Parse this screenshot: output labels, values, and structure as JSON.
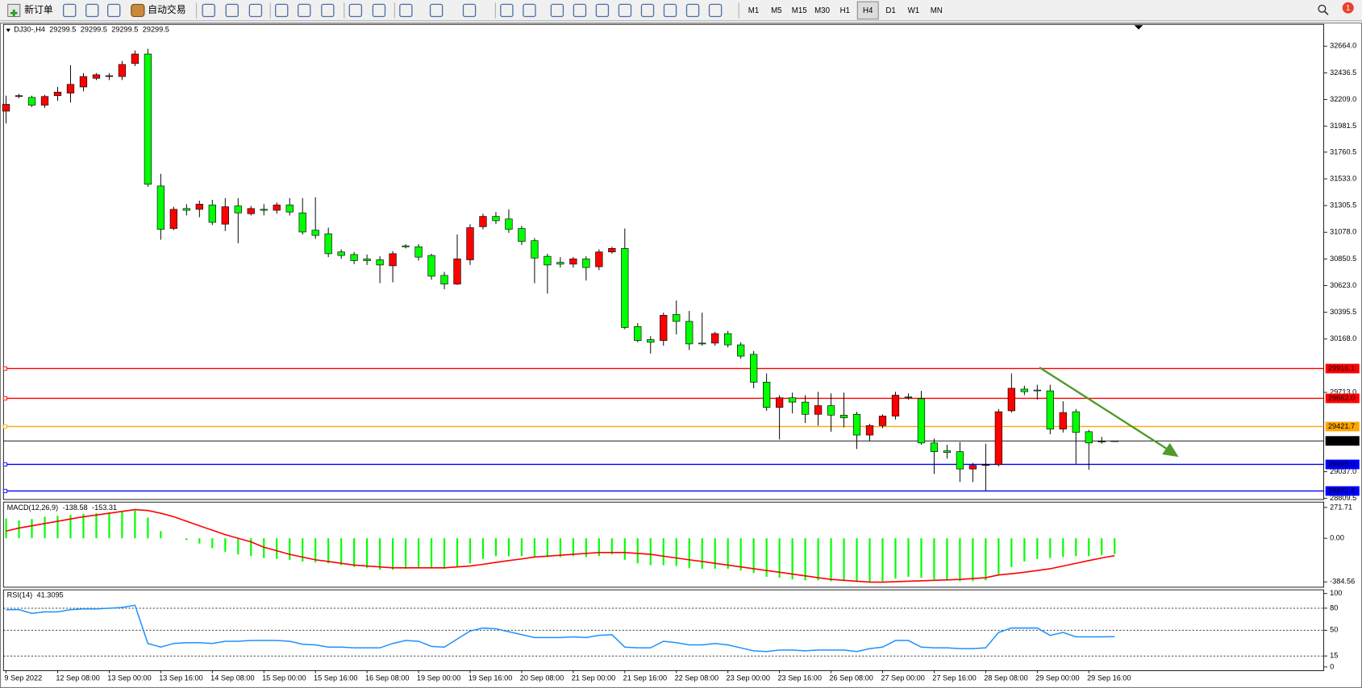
{
  "toolbar": {
    "new_order": "新订单",
    "auto_trading": "自动交易",
    "timeframes": [
      "M1",
      "M5",
      "M15",
      "M30",
      "H1",
      "H4",
      "D1",
      "W1",
      "MN"
    ],
    "active_timeframe": "H4",
    "notifications": 1
  },
  "chart_data": [
    {
      "type": "candlestick",
      "title": "DJ30-,H4",
      "categories": [
        "9 Sep 2022",
        null,
        null,
        null,
        "12 Sep 08:00",
        null,
        null,
        null,
        "13 Sep 00:00",
        null,
        null,
        null,
        "13 Sep 16:00",
        null,
        null,
        null,
        "14 Sep 08:00",
        null,
        null,
        null,
        "15 Sep 00:00",
        null,
        null,
        null,
        "15 Sep 16:00",
        null,
        null,
        null,
        "16 Sep 08:00",
        null,
        null,
        null,
        "19 Sep 00:00",
        null,
        null,
        null,
        "19 Sep 16:00",
        null,
        null,
        null,
        "20 Sep 08:00",
        null,
        null,
        null,
        "21 Sep 00:00",
        null,
        null,
        null,
        "21 Sep 16:00",
        null,
        null,
        null,
        "22 Sep 08:00",
        null,
        null,
        null,
        "23 Sep 00:00",
        null,
        null,
        null,
        "23 Sep 16:00",
        null,
        null,
        null,
        "26 Sep 08:00",
        null,
        null,
        null,
        "27 Sep 00:00",
        null,
        null,
        null,
        "27 Sep 16:00",
        null,
        null,
        null,
        "28 Sep 08:00",
        null,
        null,
        null,
        "29 Sep 00:00",
        null,
        null,
        null,
        "29 Sep 16:00",
        null,
        null
      ],
      "open": [
        32110,
        32235,
        32227,
        32161,
        32242,
        32264,
        32316,
        32390,
        32405,
        32405,
        32516,
        32597,
        31472,
        31110,
        31280,
        31273,
        31310,
        31147,
        31302,
        31236,
        31273,
        31265,
        31310,
        31243,
        31095,
        31065,
        30910,
        30888,
        30851,
        30843,
        30792,
        30962,
        30954,
        30880,
        30710,
        30636,
        30843,
        31125,
        31213,
        31191,
        31110,
        31006,
        30873,
        30821,
        30806,
        30851,
        30784,
        30910,
        30940,
        30274,
        30163,
        30155,
        30377,
        30318,
        30133,
        30133,
        30214,
        30118,
        30037,
        29800,
        29585,
        29667,
        29630,
        29526,
        29600,
        29519,
        29526,
        29349,
        29430,
        29511,
        29674,
        29659,
        29282,
        29215,
        29208,
        29060,
        29090,
        29097,
        29556,
        29741,
        29733,
        29726,
        29400,
        29548,
        29378,
        29297,
        29299.5
      ],
      "high": [
        32242,
        32257,
        32242,
        32249,
        32316,
        32501,
        32434,
        32434,
        32434,
        32538,
        32627,
        32642,
        31576,
        31295,
        31317,
        31347,
        31354,
        31369,
        31369,
        31302,
        31317,
        31332,
        31369,
        31369,
        31376,
        31117,
        30932,
        30910,
        30888,
        30873,
        30917,
        30977,
        30977,
        30895,
        30740,
        31058,
        31147,
        31236,
        31250,
        31273,
        31132,
        31028,
        30895,
        30866,
        30866,
        30873,
        30932,
        30954,
        31110,
        30303,
        30192,
        30392,
        30496,
        30407,
        30392,
        30229,
        30237,
        30140,
        30066,
        29874,
        29689,
        29711,
        29689,
        29718,
        29704,
        29711,
        29548,
        29445,
        29526,
        29718,
        29704,
        29726,
        29319,
        29267,
        29289,
        29112,
        29275,
        29571,
        29874,
        29770,
        29778,
        29778,
        29637,
        29571,
        29393,
        29334,
        29299.5
      ],
      "low": [
        32005,
        32220,
        32146,
        32138,
        32198,
        32183,
        32279,
        32375,
        32375,
        32375,
        32494,
        31465,
        31014,
        31095,
        31221,
        31206,
        31139,
        31088,
        30984,
        31221,
        31221,
        31236,
        31221,
        31058,
        31021,
        30866,
        30851,
        30806,
        30799,
        30644,
        30651,
        30940,
        30836,
        30673,
        30592,
        30629,
        30799,
        31102,
        31147,
        31073,
        30969,
        30644,
        30555,
        30777,
        30777,
        30666,
        30755,
        30895,
        30251,
        30140,
        30044,
        30111,
        30207,
        30074,
        30111,
        30111,
        30096,
        30000,
        29748,
        29556,
        29312,
        29534,
        29452,
        29430,
        29378,
        29415,
        29230,
        29297,
        29408,
        29482,
        29652,
        29267,
        29018,
        29149,
        28949,
        28949,
        28875,
        29082,
        29541,
        29689,
        29652,
        29356,
        29371,
        29104,
        29053,
        29275,
        29299.5
      ],
      "close": [
        32168,
        32242,
        32161,
        32235,
        32272,
        32338,
        32405,
        32420,
        32412,
        32508,
        32597,
        31487,
        31102,
        31273,
        31265,
        31317,
        31162,
        31295,
        31243,
        31280,
        31265,
        31310,
        31250,
        31080,
        31051,
        30895,
        30880,
        30836,
        30836,
        30799,
        30895,
        30954,
        30866,
        30703,
        30636,
        30851,
        31117,
        31213,
        31176,
        31102,
        30999,
        30858,
        30799,
        30806,
        30851,
        30777,
        30910,
        30940,
        30266,
        30155,
        30140,
        30370,
        30318,
        30126,
        30126,
        30214,
        30118,
        30022,
        29800,
        29585,
        29667,
        29630,
        29526,
        29600,
        29519,
        29497,
        29349,
        29430,
        29511,
        29689,
        29667,
        29282,
        29208,
        29201,
        29060,
        29090,
        29097,
        29548,
        29748,
        29719,
        29726,
        29400,
        29541,
        29371,
        29282,
        29290,
        29299.5
      ],
      "up_color": "#ff0000",
      "down_color": "#00ff00",
      "price_line_color": "#000000",
      "ylim": [
        28800,
        32850
      ],
      "yticks": [
        {
          "value": 32664,
          "label": "32664.0"
        },
        32436.5,
        {
          "value": 32209,
          "label": "32209.0"
        },
        31981.5,
        31760.5,
        {
          "value": 31533,
          "label": "31533.0"
        },
        31305.5,
        {
          "value": 31078,
          "label": "31078.0"
        },
        30850.5,
        {
          "value": 30623,
          "label": "30623.0"
        },
        30395.5,
        {
          "value": 30168,
          "label": "30168.0"
        },
        {
          "value": 29713,
          "label": "29713.0"
        },
        {
          "value": 29037,
          "label": "29037.0"
        },
        28809.5
      ],
      "levels": {
        "values": [
          29916.1,
          29662,
          29421.7,
          29099,
          28872.4
        ],
        "value_labels": [
          "29916.1",
          "29662.0",
          "29421.7",
          "29099.0",
          "28872.4"
        ],
        "colors": [
          "#ff0000",
          "#ff0000",
          "#ffa500",
          "#0000ff",
          "#0000ff"
        ]
      }
    },
    {
      "type": "macd",
      "title": "MACD(12,26,9)",
      "histogram": [
        174,
        158,
        170,
        190,
        198,
        205,
        213,
        221,
        229,
        237,
        245,
        182,
        63,
        0,
        -16,
        -47,
        -87,
        -119,
        -142,
        -158,
        -174,
        -182,
        -190,
        -205,
        -213,
        -221,
        -237,
        -253,
        -261,
        -277,
        -277,
        -269,
        -261,
        -261,
        -269,
        -253,
        -221,
        -182,
        -158,
        -158,
        -158,
        -166,
        -166,
        -166,
        -158,
        -166,
        -158,
        -142,
        -190,
        -221,
        -237,
        -237,
        -245,
        -261,
        -269,
        -269,
        -269,
        -285,
        -308,
        -340,
        -348,
        -363,
        -371,
        -371,
        -379,
        -379,
        -387,
        -387,
        -379,
        -356,
        -340,
        -348,
        -363,
        -371,
        -379,
        -379,
        -371,
        -316,
        -253,
        -205,
        -182,
        -174,
        -166,
        -158,
        -158,
        -150,
        -138.58
      ],
      "signal": [
        63,
        90,
        110,
        130,
        150,
        170,
        190,
        205,
        221,
        237,
        253,
        245,
        221,
        190,
        150,
        110,
        71,
        32,
        0,
        -32,
        -79,
        -110,
        -142,
        -166,
        -190,
        -205,
        -221,
        -237,
        -245,
        -253,
        -261,
        -261,
        -261,
        -261,
        -261,
        -253,
        -245,
        -230,
        -213,
        -197,
        -182,
        -166,
        -158,
        -150,
        -142,
        -134,
        -126,
        -126,
        -126,
        -134,
        -142,
        -158,
        -174,
        -190,
        -205,
        -221,
        -237,
        -253,
        -269,
        -285,
        -300,
        -316,
        -332,
        -348,
        -363,
        -371,
        -379,
        -387,
        -387,
        -383,
        -379,
        -375,
        -371,
        -367,
        -363,
        -356,
        -348,
        -324,
        -313,
        -300,
        -285,
        -269,
        -245,
        -221,
        -197,
        -174,
        -153.31
      ],
      "bar_color": "#00ff00",
      "signal_color": "#ff0000",
      "ylim": [
        -432,
        319
      ],
      "yticks": [
        271.71,
        {
          "value": 0,
          "label": "0.00"
        },
        -384.56
      ]
    },
    {
      "type": "line",
      "title": "RSI(14)",
      "values": [
        78,
        78,
        73,
        75,
        75,
        78,
        79,
        79,
        80,
        81,
        84,
        32,
        27,
        32,
        33,
        33,
        32,
        35,
        35,
        36,
        36,
        36,
        35,
        31,
        30,
        27,
        27,
        26,
        26,
        26,
        32,
        36,
        35,
        28,
        27,
        38,
        49,
        53,
        52,
        48,
        44,
        40,
        40,
        40,
        41,
        40,
        43,
        44,
        27,
        26,
        26,
        35,
        33,
        30,
        30,
        32,
        30,
        26,
        22,
        21,
        23,
        23,
        22,
        23,
        23,
        23,
        21,
        25,
        27,
        36,
        36,
        27,
        26,
        26,
        25,
        25,
        26,
        47,
        53,
        53,
        53,
        43,
        47,
        41,
        41,
        41,
        41.3095
      ],
      "color": "#1e90ff",
      "ylim": [
        -5,
        105
      ],
      "yticks": [
        100,
        80,
        50,
        15,
        0
      ],
      "levels": [
        80,
        50,
        15
      ]
    }
  ]
}
